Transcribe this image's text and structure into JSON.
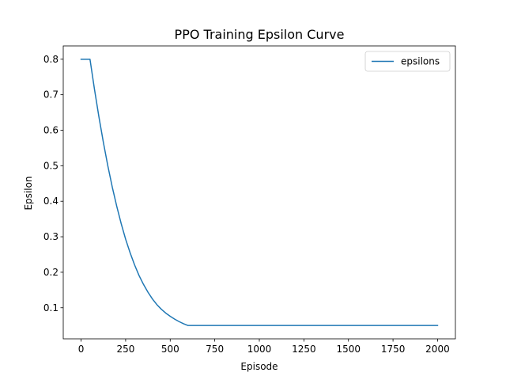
{
  "chart_data": {
    "type": "line",
    "title": "PPO Training Epsilon Curve",
    "xlabel": "Episode",
    "ylabel": "Epsilon",
    "xlim": [
      -100,
      2100
    ],
    "ylim": [
      0.0125,
      0.8375
    ],
    "xticks": [
      0,
      250,
      500,
      750,
      1000,
      1250,
      1500,
      1750,
      2000
    ],
    "yticks": [
      0.1,
      0.2,
      0.3,
      0.4,
      0.5,
      0.6,
      0.7,
      0.8
    ],
    "legend": {
      "placement": "upper-right"
    },
    "grid": false,
    "series": [
      {
        "name": "epsilons",
        "color": "#1f77b4",
        "x": [
          0,
          50,
          75,
          100,
          125,
          150,
          175,
          200,
          225,
          250,
          275,
          300,
          325,
          350,
          375,
          400,
          425,
          450,
          475,
          500,
          525,
          550,
          575,
          600,
          1000,
          1500,
          2000
        ],
        "y": [
          0.8,
          0.8,
          0.716,
          0.638,
          0.566,
          0.5,
          0.44,
          0.386,
          0.337,
          0.293,
          0.255,
          0.221,
          0.191,
          0.166,
          0.144,
          0.125,
          0.109,
          0.096,
          0.085,
          0.076,
          0.068,
          0.061,
          0.055,
          0.05,
          0.05,
          0.05,
          0.05
        ]
      }
    ]
  }
}
